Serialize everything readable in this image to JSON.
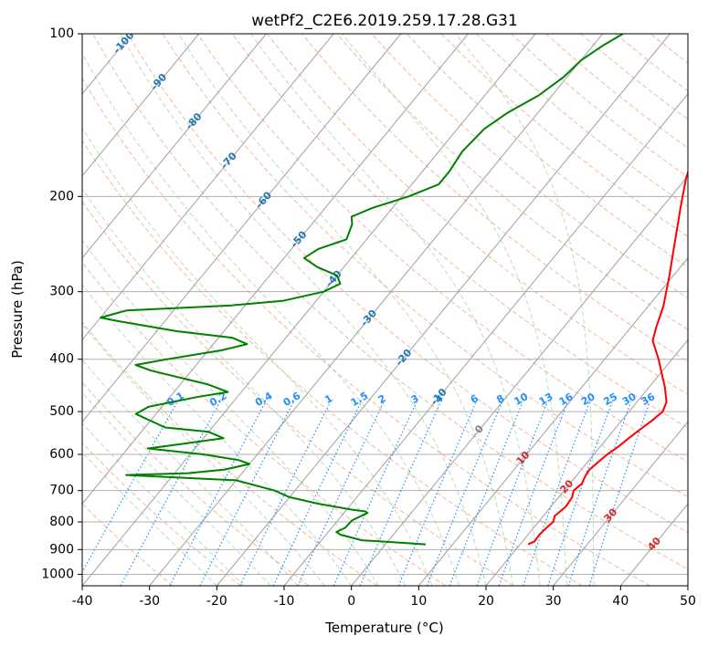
{
  "chart_data": {
    "type": "line",
    "chart_kind": "skew-t log-p diagram",
    "title": "wetPf2_C2E6.2019.259.17.28.G31",
    "xlabel": "Temperature (°C)",
    "ylabel": "Pressure (hPa)",
    "xlim": [
      -40,
      50
    ],
    "ylim": [
      1050,
      100
    ],
    "y_scale": "log",
    "x_ticks": [
      -40,
      -30,
      -20,
      -10,
      0,
      10,
      20,
      30,
      40,
      50
    ],
    "y_ticks": [
      100,
      200,
      300,
      400,
      500,
      600,
      700,
      800,
      900,
      1000
    ],
    "grid": true,
    "legend": "none",
    "skewed_isotherm_labels": [
      "-100",
      "-90",
      "-80",
      "-70",
      "-60",
      "-50",
      "-40",
      "-30",
      "-20",
      "-10",
      "0",
      "10",
      "20",
      "30",
      "40"
    ],
    "isotherm_label_colors": {
      "cold": "#1f77b4",
      "warm": "#d62728",
      "zero": "#7f7f7f"
    },
    "mixing_ratio_labels": [
      "0.1",
      "0.2",
      "0.4",
      "0.6",
      "1",
      "1.5",
      "2",
      "3",
      "4",
      "6",
      "8",
      "10",
      "13",
      "16",
      "20",
      "25",
      "30",
      "36"
    ],
    "mixing_ratio_color": "#1e90ff",
    "series": [
      {
        "color": "#ff0000",
        "points": [
          [
            21.2,
            880
          ],
          [
            21.8,
            870
          ],
          [
            21.7,
            845
          ],
          [
            21.9,
            820
          ],
          [
            22.2,
            800
          ],
          [
            21.7,
            780
          ],
          [
            22.2,
            750
          ],
          [
            22.0,
            720
          ],
          [
            21.4,
            700
          ],
          [
            21.8,
            680
          ],
          [
            21.4,
            660
          ],
          [
            21.2,
            640
          ],
          [
            21.6,
            620
          ],
          [
            22.0,
            600
          ],
          [
            22.7,
            580
          ],
          [
            23.2,
            560
          ],
          [
            23.8,
            540
          ],
          [
            24.5,
            520
          ],
          [
            25.0,
            500
          ],
          [
            24.4,
            480
          ],
          [
            22.3,
            450
          ],
          [
            18.0,
            400
          ],
          [
            14.9,
            370
          ],
          [
            13.8,
            350
          ],
          [
            12.3,
            320
          ],
          [
            9.4,
            280
          ],
          [
            6.8,
            250
          ],
          [
            2.8,
            210
          ],
          [
            0.0,
            185
          ],
          [
            -2.0,
            165
          ],
          [
            -3.0,
            152
          ],
          [
            -4.5,
            140
          ],
          [
            -5.9,
            130
          ],
          [
            -7.3,
            120
          ],
          [
            -7.8,
            112
          ],
          [
            -8.2,
            108
          ],
          [
            -9.0,
            104
          ],
          [
            -10.0,
            100
          ]
        ]
      },
      {
        "color": "#008000",
        "points": [
          [
            6.0,
            880
          ],
          [
            -0.5,
            870
          ],
          [
            -4.0,
            865
          ],
          [
            -7.8,
            845
          ],
          [
            -8.8,
            835
          ],
          [
            -8.0,
            820
          ],
          [
            -7.9,
            795
          ],
          [
            -6.5,
            770
          ],
          [
            -7.0,
            765
          ],
          [
            -9.0,
            760
          ],
          [
            -15.0,
            740
          ],
          [
            -20.0,
            720
          ],
          [
            -23.0,
            700
          ],
          [
            -30.0,
            670
          ],
          [
            -47.0,
            655
          ],
          [
            -38.0,
            650
          ],
          [
            -33.0,
            640
          ],
          [
            -30.0,
            625
          ],
          [
            -32.0,
            615
          ],
          [
            -38.0,
            600
          ],
          [
            -47.0,
            585
          ],
          [
            -43.0,
            575
          ],
          [
            -37.0,
            560
          ],
          [
            -40.0,
            545
          ],
          [
            -47.0,
            535
          ],
          [
            -53.0,
            505
          ],
          [
            -52.0,
            490
          ],
          [
            -46.0,
            470
          ],
          [
            -42.0,
            460
          ],
          [
            -46.0,
            445
          ],
          [
            -56.0,
            420
          ],
          [
            -59.0,
            410
          ],
          [
            -55.0,
            400
          ],
          [
            -48.0,
            385
          ],
          [
            -45.0,
            375
          ],
          [
            -48.0,
            365
          ],
          [
            -57.0,
            355
          ],
          [
            -67.0,
            340
          ],
          [
            -70.0,
            335
          ],
          [
            -67.0,
            325
          ],
          [
            -52.0,
            318
          ],
          [
            -45.0,
            312
          ],
          [
            -40.0,
            300
          ],
          [
            -38.5,
            290
          ],
          [
            -40.0,
            280
          ],
          [
            -44.0,
            270
          ],
          [
            -47.0,
            260
          ],
          [
            -46.0,
            250
          ],
          [
            -43.0,
            240
          ],
          [
            -44.0,
            225
          ],
          [
            -45.0,
            218
          ],
          [
            -43.0,
            210
          ],
          [
            -39.0,
            200
          ],
          [
            -36.0,
            190
          ],
          [
            -36.0,
            180
          ],
          [
            -36.5,
            165
          ],
          [
            -36.0,
            150
          ],
          [
            -34.5,
            140
          ],
          [
            -32.0,
            130
          ],
          [
            -30.5,
            120
          ],
          [
            -30.0,
            112
          ],
          [
            -28.5,
            105
          ],
          [
            -27.0,
            100
          ]
        ]
      }
    ]
  }
}
